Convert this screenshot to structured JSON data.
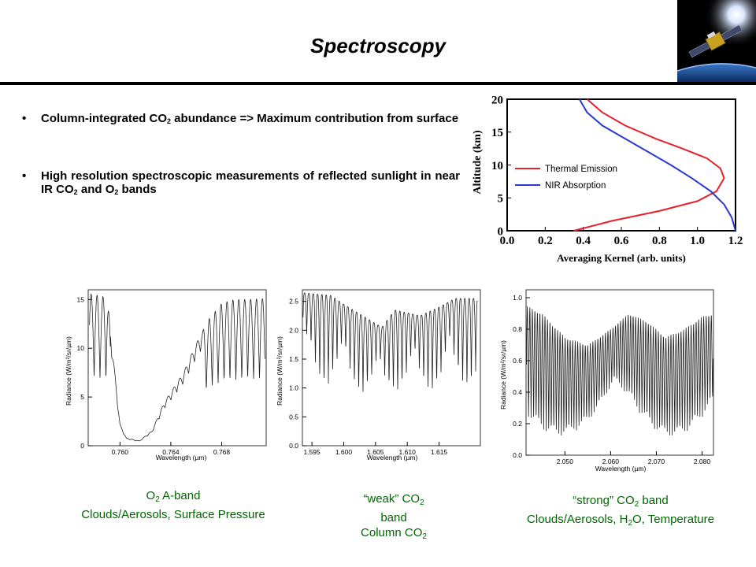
{
  "slide": {
    "title": "Spectroscopy"
  },
  "bullets": [
    {
      "parts": [
        {
          "t": "Column-integrated CO"
        },
        {
          "sub": "2"
        },
        {
          "t": " abundance => Maximum contribution from surface"
        }
      ]
    },
    {
      "parts": [
        {
          "t": "High resolution spectroscopic measurements of reflected sunlight in near IR CO"
        },
        {
          "sub": "2"
        },
        {
          "t": " and O"
        },
        {
          "sub": "2"
        },
        {
          "t": " bands"
        }
      ]
    }
  ],
  "captions": {
    "o2_band": [
      [
        {
          "t": "O"
        },
        {
          "sub": "2"
        },
        {
          "t": " A-band"
        }
      ],
      [
        {
          "t": "Clouds/Aerosols, Surface Pressure"
        }
      ]
    ],
    "weak_co2": [
      [
        {
          "t": "“weak” CO"
        },
        {
          "sub": "2"
        }
      ],
      [
        {
          "t": "band"
        }
      ],
      [
        {
          "t": "Column CO"
        },
        {
          "sub": "2"
        }
      ]
    ],
    "strong_co2": [
      [
        {
          "t": "“strong” CO"
        },
        {
          "sub": "2"
        },
        {
          "t": " band"
        }
      ],
      [
        {
          "t": "Clouds/Aerosols, H"
        },
        {
          "sub": "2"
        },
        {
          "t": "O, Temperature"
        }
      ]
    ]
  },
  "colors": {
    "caption_green": "#006600",
    "thermal_red": "#e8202a",
    "nir_blue": "#2838d0",
    "spectrum": "#222222"
  },
  "chart_data": [
    {
      "id": "kernel",
      "type": "line",
      "xlabel": "Averaging Kernel (arb. units)",
      "ylabel": "Altitude (km)",
      "xlim": [
        0,
        1.2
      ],
      "ylim": [
        0,
        20
      ],
      "xticks": [
        "0.0",
        "0.2",
        "0.4",
        "0.6",
        "0.8",
        "1.0",
        "1.2"
      ],
      "yticks": [
        "0",
        "5",
        "10",
        "15",
        "20"
      ],
      "legend_position": "center-left",
      "series": [
        {
          "name": "Thermal Emission",
          "color": "#e8202a",
          "x": [
            0.35,
            0.55,
            0.8,
            1.0,
            1.1,
            1.14,
            1.12,
            1.05,
            0.92,
            0.78,
            0.62,
            0.5,
            0.42
          ],
          "y": [
            0,
            1.5,
            3,
            4.5,
            6,
            8,
            9.5,
            11,
            12.5,
            14,
            16,
            18,
            20
          ]
        },
        {
          "name": "NIR Absorption",
          "color": "#2838d0",
          "x": [
            1.2,
            1.18,
            1.14,
            1.07,
            0.97,
            0.86,
            0.74,
            0.62,
            0.5,
            0.42,
            0.38
          ],
          "y": [
            0,
            2,
            4,
            6,
            8,
            10,
            12,
            14,
            16,
            18,
            20
          ]
        }
      ]
    },
    {
      "id": "o2_aband",
      "type": "line",
      "xlabel": "Wavelength (µm)",
      "ylabel": "Radiance (W/m²/sr/µm)",
      "xlim": [
        0.7575,
        0.7715
      ],
      "ylim": [
        0,
        16
      ],
      "xticks": [
        "0.760",
        "0.764",
        "0.768"
      ],
      "yticks": [
        "0",
        "5",
        "10",
        "15"
      ],
      "series": [
        {
          "name": "",
          "x": [
            0.7576,
            0.759,
            0.76,
            0.7605,
            0.7615,
            0.7625,
            0.7635,
            0.765,
            0.766,
            0.767,
            0.768,
            0.769,
            0.77,
            0.7714
          ],
          "y": [
            15.6,
            15.2,
            2.2,
            0.8,
            0.5,
            1.5,
            4.5,
            7.5,
            10.5,
            13.0,
            14.6,
            15.0,
            15.0,
            15.1
          ]
        }
      ]
    },
    {
      "id": "weak_co2",
      "type": "line",
      "xlabel": "Wavelength (µm)",
      "ylabel": "Radiance (W/m²/sr/µm)",
      "xlim": [
        1.5935,
        1.6215
      ],
      "ylim": [
        0,
        2.7
      ],
      "xticks": [
        "1.595",
        "1.600",
        "1.605",
        "1.610",
        "1.615"
      ],
      "yticks": [
        "0.0",
        "0.5",
        "1.0",
        "1.5",
        "2.0",
        "2.5"
      ],
      "series": [
        {
          "name": "",
          "x": [
            1.5936,
            1.598,
            1.6,
            1.603,
            1.606,
            1.608,
            1.612,
            1.615,
            1.6175,
            1.621
          ],
          "y": [
            2.65,
            2.6,
            2.45,
            2.25,
            2.05,
            2.35,
            2.25,
            2.4,
            2.55,
            2.55
          ]
        }
      ]
    },
    {
      "id": "strong_co2",
      "type": "line",
      "xlabel": "Wavelength (µm)",
      "ylabel": "Radiance (W/m²/sr/µm)",
      "xlim": [
        2.0415,
        2.0825
      ],
      "ylim": [
        0,
        1.05
      ],
      "xticks": [
        "2.050",
        "2.060",
        "2.070",
        "2.080"
      ],
      "yticks": [
        "0.0",
        "0.2",
        "0.4",
        "0.6",
        "0.8",
        "1.0"
      ],
      "series": [
        {
          "name": "",
          "x": [
            2.0416,
            2.045,
            2.05,
            2.055,
            2.06,
            2.064,
            2.068,
            2.072,
            2.076,
            2.08,
            2.0824
          ],
          "y": [
            0.95,
            0.9,
            0.75,
            0.7,
            0.8,
            0.9,
            0.85,
            0.75,
            0.8,
            0.88,
            0.9
          ]
        }
      ]
    }
  ]
}
